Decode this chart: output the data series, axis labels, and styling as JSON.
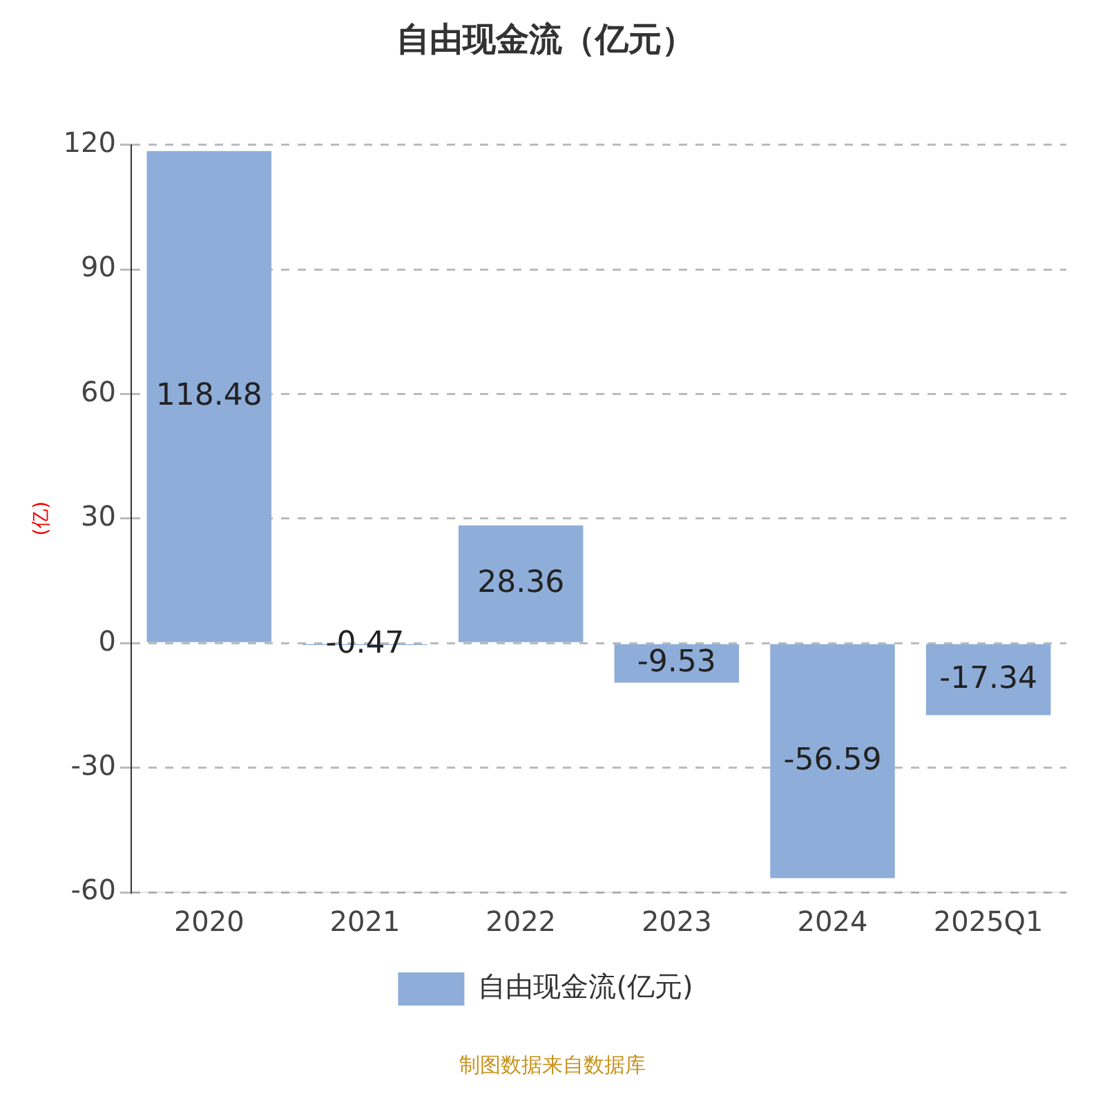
{
  "chart_data": {
    "type": "bar",
    "title": "自由现金流（亿元）",
    "ylabel": "(亿)",
    "categories": [
      "2020",
      "2021",
      "2022",
      "2023",
      "2024",
      "2025Q1"
    ],
    "series": [
      {
        "name": "自由现金流(亿元)",
        "color": "#8eadd9",
        "values": [
          118.48,
          -0.47,
          28.36,
          -9.53,
          -56.59,
          -17.34
        ]
      }
    ],
    "ylim": [
      -60,
      120
    ],
    "yticks": [
      -60,
      -30,
      0,
      30,
      60,
      90,
      120
    ],
    "grid": "y",
    "legend": "bottom",
    "data_labels": true,
    "annotations": [
      "制图数据来自数据库"
    ]
  }
}
